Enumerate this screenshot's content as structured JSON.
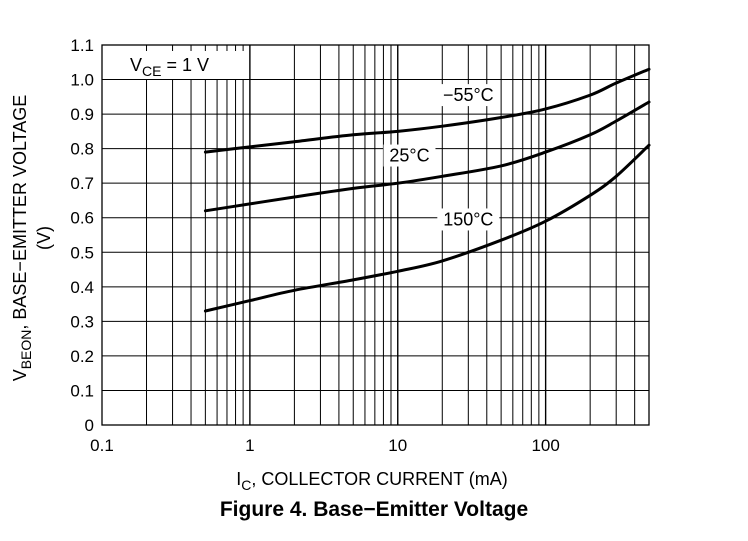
{
  "chart_data": {
    "type": "line",
    "figure_caption": "Figure 4. Base−Emitter Voltage",
    "annotation": {
      "main": "V",
      "sub": "CE",
      "rest": " = 1 V"
    },
    "xlabel": {
      "main": "I",
      "sub": "C",
      "rest": ", COLLECTOR CURRENT (mA)"
    },
    "ylabel": {
      "main": "V",
      "sub": "BEON",
      "rest": ", BASE−EMITTER VOLTAGE",
      "line2": "(V)"
    },
    "x_scale": "log",
    "xlim": [
      0.1,
      500
    ],
    "ylim": [
      0,
      1.1
    ],
    "x_ticks": [
      {
        "value": 0.1,
        "label": "0.1"
      },
      {
        "value": 1,
        "label": "1"
      },
      {
        "value": 10,
        "label": "10"
      },
      {
        "value": 100,
        "label": "100"
      }
    ],
    "y_ticks": [
      {
        "value": 0,
        "label": "0"
      },
      {
        "value": 0.1,
        "label": "0.1"
      },
      {
        "value": 0.2,
        "label": "0.2"
      },
      {
        "value": 0.3,
        "label": "0.3"
      },
      {
        "value": 0.4,
        "label": "0.4"
      },
      {
        "value": 0.5,
        "label": "0.5"
      },
      {
        "value": 0.6,
        "label": "0.6"
      },
      {
        "value": 0.7,
        "label": "0.7"
      },
      {
        "value": 0.8,
        "label": "0.8"
      },
      {
        "value": 0.9,
        "label": "0.9"
      },
      {
        "value": 1.0,
        "label": "1.0"
      },
      {
        "value": 1.1,
        "label": "1.1"
      }
    ],
    "grid": true,
    "series": [
      {
        "name": "−55°C",
        "x": [
          0.5,
          1,
          2,
          5,
          10,
          20,
          50,
          100,
          200,
          300,
          500
        ],
        "y": [
          0.79,
          0.805,
          0.82,
          0.84,
          0.85,
          0.865,
          0.89,
          0.915,
          0.955,
          0.99,
          1.03
        ]
      },
      {
        "name": "25°C",
        "x": [
          0.5,
          1,
          2,
          5,
          10,
          20,
          50,
          100,
          200,
          300,
          500
        ],
        "y": [
          0.62,
          0.64,
          0.66,
          0.685,
          0.7,
          0.72,
          0.75,
          0.79,
          0.84,
          0.88,
          0.935
        ]
      },
      {
        "name": "150°C",
        "x": [
          0.5,
          1,
          2,
          5,
          10,
          20,
          50,
          100,
          200,
          300,
          500
        ],
        "y": [
          0.33,
          0.36,
          0.39,
          0.42,
          0.445,
          0.475,
          0.535,
          0.59,
          0.665,
          0.72,
          0.81
        ]
      }
    ]
  }
}
